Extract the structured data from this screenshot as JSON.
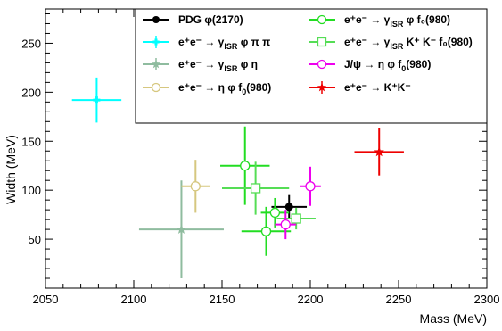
{
  "chart_data": {
    "type": "scatter",
    "title": "",
    "xlabel": "Mass (MeV)",
    "ylabel": "Width (MeV)",
    "xlim": [
      2050,
      2300
    ],
    "ylim": [
      0,
      285
    ],
    "xticks": [
      2050,
      2100,
      2150,
      2200,
      2250,
      2300
    ],
    "yticks": [
      50,
      100,
      150,
      200,
      250
    ],
    "legend_position": "top-right",
    "series": [
      {
        "name": "PDG φ(2170)",
        "legend": {
          "pre": "PDG ",
          "mid": "φ(2170)"
        },
        "color": "#000000",
        "marker": "filled-circle",
        "points": [
          {
            "x": 2188,
            "y": 83,
            "xerr": [
              10,
              10
            ],
            "yerr": [
              12,
              12
            ]
          }
        ]
      },
      {
        "name": "e+e- → γISR φ π π",
        "legend": {
          "main": "e⁺e⁻ → γ",
          "sub": "ISR",
          "tail": " φ π π"
        },
        "color": "#00ffff",
        "marker": "cross",
        "points": [
          {
            "x": 2079,
            "y": 192,
            "xerr": [
              14,
              14
            ],
            "yerr": [
              23,
              23
            ]
          }
        ]
      },
      {
        "name": "e+e- → γISR φ η",
        "legend": {
          "main": "e⁺e⁻ → γ",
          "sub": "ISR",
          "tail": " φ η"
        },
        "color": "#8fbc9f",
        "marker": "star",
        "points": [
          {
            "x": 2127,
            "y": 60,
            "xerr": [
              24,
              24
            ],
            "yerr": [
              50,
              50
            ]
          }
        ]
      },
      {
        "name": "e+e- → η φ f0(980)",
        "legend": {
          "main": "e⁺e⁻ → η φ f",
          "sub": "0",
          "tail": "(980)"
        },
        "color": "#d6c77f",
        "marker": "open-circle",
        "points": [
          {
            "x": 2135,
            "y": 104,
            "xerr": [
              8,
              8
            ],
            "yerr": [
              27,
              27
            ]
          }
        ]
      },
      {
        "name": "e+e- → γISR φ f0(980)",
        "legend": {
          "main": "e⁺e⁻ → γ",
          "sub": "ISR",
          "tail": " φ f₀(980)"
        },
        "color": "#22dd22",
        "marker": "open-circle",
        "points": [
          {
            "x": 2163,
            "y": 125,
            "xerr": [
              14,
              14
            ],
            "yerr": [
              40,
              40
            ]
          },
          {
            "x": 2180,
            "y": 77,
            "xerr": [
              8,
              8
            ],
            "yerr": [
              15,
              15
            ]
          },
          {
            "x": 2175,
            "y": 58,
            "xerr": [
              14,
              14
            ],
            "yerr": [
              25,
              25
            ]
          }
        ]
      },
      {
        "name": "e+e- → γISR K+ K- f0(980)",
        "legend": {
          "main": "e⁺e⁻ → γ",
          "sub": "ISR",
          "tail": " K⁺ K⁻ f₀(980)"
        },
        "color": "#55dd55",
        "marker": "open-square",
        "points": [
          {
            "x": 2169,
            "y": 102,
            "xerr": [
              19,
              19
            ],
            "yerr": [
              27,
              27
            ]
          },
          {
            "x": 2192,
            "y": 71,
            "xerr": [
              11,
              11
            ],
            "yerr": [
              11,
              11
            ]
          }
        ]
      },
      {
        "name": "J/ψ → η φ f0(980)",
        "legend": {
          "main": "J/ψ → η φ f",
          "sub": "0",
          "tail": "(980)"
        },
        "color": "#ee00ee",
        "marker": "open-circle",
        "points": [
          {
            "x": 2200,
            "y": 104,
            "xerr": [
              6,
              6
            ],
            "yerr": [
              20,
              20
            ]
          },
          {
            "x": 2186,
            "y": 65,
            "xerr": [
              6,
              6
            ],
            "yerr": [
              15,
              15
            ]
          }
        ]
      },
      {
        "name": "e+e- → K+K-",
        "legend": {
          "main": "e⁺e⁻ → K⁺K⁻"
        },
        "color": "#ee0000",
        "marker": "star",
        "points": [
          {
            "x": 2239,
            "y": 139,
            "xerr": [
              14,
              14
            ],
            "yerr": [
              24,
              24
            ]
          }
        ]
      }
    ]
  }
}
